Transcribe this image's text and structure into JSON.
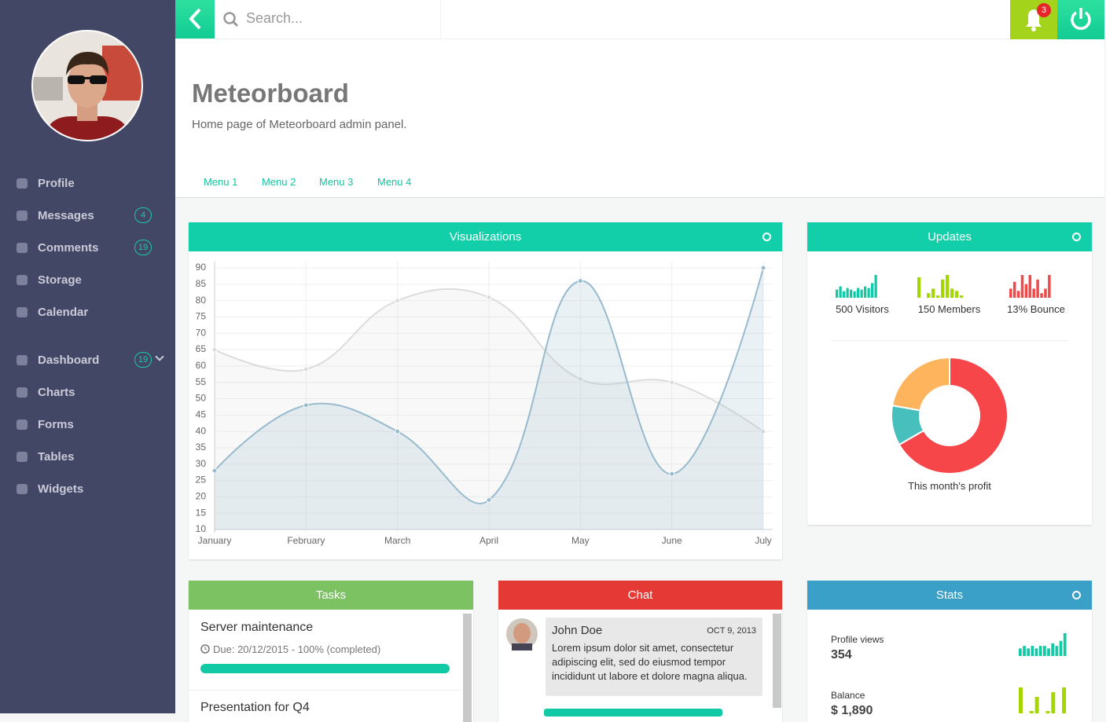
{
  "sidebar": {
    "menu": [
      {
        "label": "Profile"
      },
      {
        "label": "Messages",
        "badge": 4
      },
      {
        "label": "Comments",
        "badge": 19
      },
      {
        "label": "Storage"
      },
      {
        "label": "Calendar"
      },
      {
        "label": "Dashboard",
        "badge": 19
      },
      {
        "label": "Charts"
      },
      {
        "label": "Forms"
      },
      {
        "label": "Tables"
      },
      {
        "label": "Widgets"
      }
    ]
  },
  "header": {
    "search_placeholder": "Search...",
    "notifications": 3
  },
  "page": {
    "title": "Meteorboard",
    "subtitle": "Home page of Meteorboard admin panel.",
    "tabs": [
      "Menu 1",
      "Menu 2",
      "Menu 3",
      "Menu 4"
    ]
  },
  "panels": {
    "visualizations": "Visualizations",
    "updates": "Updates",
    "tasks": "Tasks",
    "chat": "Chat",
    "stats": "Stats"
  },
  "updates": {
    "items": [
      "500 Visitors",
      "150 Members",
      "13% Bounce"
    ],
    "profit_label": "This month's profit"
  },
  "tasks": [
    {
      "title": "Server maintenance",
      "due": "Due: 20/12/2015 - 100% (completed)",
      "progress": 100
    },
    {
      "title": "Presentation for Q4"
    }
  ],
  "chat": {
    "name": "John Doe",
    "date": "OCT 9, 2013",
    "message": "Lorem ipsum dolor sit amet, consectetur adipiscing elit, sed do eiusmod tempor incididunt ut labore et dolore magna aliqua."
  },
  "stats": [
    {
      "label": "Profile views",
      "value": "354"
    },
    {
      "label": "Balance",
      "value": "$ 1,890"
    }
  ],
  "chart_data": [
    {
      "type": "line",
      "categories": [
        "January",
        "February",
        "March",
        "April",
        "May",
        "June",
        "July"
      ],
      "series": [
        {
          "color": "#dcdcdc",
          "values": [
            65,
            59,
            80,
            81,
            56,
            55,
            40
          ]
        },
        {
          "color": "#97bbcd",
          "values": [
            28,
            48,
            40,
            19,
            86,
            27,
            90
          ]
        }
      ],
      "ylim": [
        10,
        90
      ],
      "yticks": [
        10,
        15,
        20,
        25,
        30,
        35,
        40,
        45,
        50,
        55,
        60,
        65,
        70,
        75,
        80,
        85,
        90
      ],
      "grid": true
    },
    {
      "type": "doughnut",
      "values": [
        300,
        50,
        100
      ],
      "colors": [
        "#f7464a",
        "#46bfbd",
        "#fdb45c"
      ]
    },
    {
      "type": "bar",
      "color": "#12c9a5",
      "values": [
        5,
        7,
        4,
        6,
        5,
        4,
        6,
        5,
        7,
        6,
        9,
        14
      ]
    },
    {
      "type": "bar",
      "color": "#a4d600",
      "values": [
        9,
        0,
        2,
        4,
        1,
        8,
        10,
        4,
        3,
        1
      ]
    },
    {
      "type": "bar",
      "color": "#ef4b4b",
      "values": [
        4,
        7,
        3,
        10,
        6,
        10,
        4,
        8,
        2,
        4,
        10
      ]
    },
    {
      "type": "bar",
      "color": "#12c9a5",
      "values": [
        3,
        4,
        3,
        4,
        3,
        4,
        4,
        3,
        5,
        4,
        6,
        9
      ]
    },
    {
      "type": "bar",
      "color": "#a4d600",
      "values": [
        10,
        3,
        5,
        8,
        4,
        5,
        9,
        3,
        10
      ]
    }
  ]
}
